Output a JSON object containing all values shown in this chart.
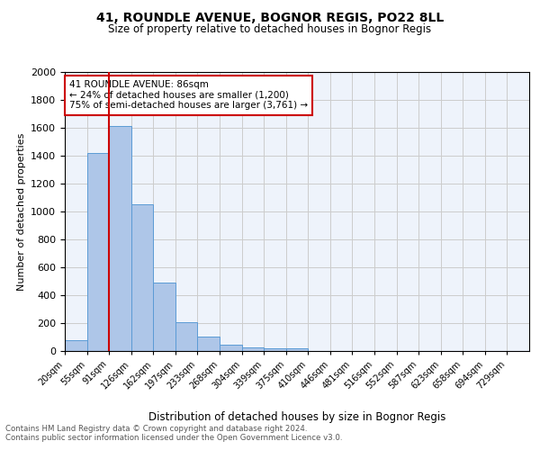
{
  "title": "41, ROUNDLE AVENUE, BOGNOR REGIS, PO22 8LL",
  "subtitle": "Size of property relative to detached houses in Bognor Regis",
  "xlabel": "Distribution of detached houses by size in Bognor Regis",
  "ylabel": "Number of detached properties",
  "footnote1": "Contains HM Land Registry data © Crown copyright and database right 2024.",
  "footnote2": "Contains public sector information licensed under the Open Government Licence v3.0.",
  "bin_labels": [
    "20sqm",
    "55sqm",
    "91sqm",
    "126sqm",
    "162sqm",
    "197sqm",
    "233sqm",
    "268sqm",
    "304sqm",
    "339sqm",
    "375sqm",
    "410sqm",
    "446sqm",
    "481sqm",
    "516sqm",
    "552sqm",
    "587sqm",
    "623sqm",
    "658sqm",
    "694sqm",
    "729sqm"
  ],
  "bar_heights": [
    80,
    1420,
    1610,
    1050,
    490,
    205,
    105,
    42,
    28,
    22,
    18,
    0,
    0,
    0,
    0,
    0,
    0,
    0,
    0,
    0,
    0
  ],
  "bar_color": "#aec6e8",
  "bar_edge_color": "#5b9bd5",
  "grid_color": "#cccccc",
  "bg_color": "#eef3fb",
  "red_line_x": 2,
  "annotation_title": "41 ROUNDLE AVENUE: 86sqm",
  "annotation_line1": "← 24% of detached houses are smaller (1,200)",
  "annotation_line2": "75% of semi-detached houses are larger (3,761) →",
  "annotation_box_color": "#ffffff",
  "annotation_border_color": "#cc0000",
  "ylim": [
    0,
    2000
  ],
  "yticks": [
    0,
    200,
    400,
    600,
    800,
    1000,
    1200,
    1400,
    1600,
    1800,
    2000
  ]
}
